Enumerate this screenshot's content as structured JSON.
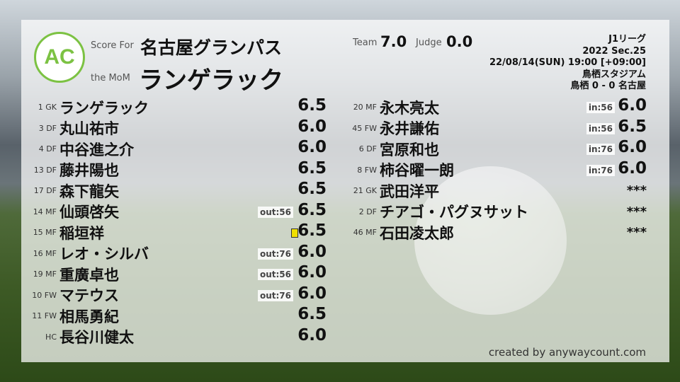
{
  "header": {
    "logo_text": "AC",
    "logo_ring": "ANYWAY COUNT",
    "score_for_label": "Score For",
    "team": "名古屋グランパス",
    "mom_label": "the MoM",
    "mom": "ランゲラック",
    "team_label": "Team",
    "team_score": "7.0",
    "judge_label": "Judge",
    "judge_score": "0.0"
  },
  "match": {
    "league": "J1リーグ",
    "section": "2022 Sec.25",
    "datetime": "22/08/14(SUN) 19:00 [+09:00]",
    "stadium": "鳥栖スタジアム",
    "result": "鳥栖 0 - 0 名古屋"
  },
  "left": [
    {
      "num": "1",
      "pos": "GK",
      "name": "ランゲラック",
      "score": "6.5",
      "badge": ""
    },
    {
      "num": "3",
      "pos": "DF",
      "name": "丸山祐市",
      "score": "6.0",
      "badge": ""
    },
    {
      "num": "4",
      "pos": "DF",
      "name": "中谷進之介",
      "score": "6.0",
      "badge": ""
    },
    {
      "num": "13",
      "pos": "DF",
      "name": "藤井陽也",
      "score": "6.5",
      "badge": ""
    },
    {
      "num": "17",
      "pos": "DF",
      "name": "森下龍矢",
      "score": "6.5",
      "badge": ""
    },
    {
      "num": "14",
      "pos": "MF",
      "name": "仙頭啓矢",
      "score": "6.5",
      "badge": "out:56"
    },
    {
      "num": "15",
      "pos": "MF",
      "name": "稲垣祥",
      "score": "6.5",
      "badge": "",
      "card": "yellow"
    },
    {
      "num": "16",
      "pos": "MF",
      "name": "レオ・シルバ",
      "score": "6.0",
      "badge": "out:76"
    },
    {
      "num": "19",
      "pos": "MF",
      "name": "重廣卓也",
      "score": "6.0",
      "badge": "out:56"
    },
    {
      "num": "10",
      "pos": "FW",
      "name": "マテウス",
      "score": "6.0",
      "badge": "out:76"
    },
    {
      "num": "11",
      "pos": "FW",
      "name": "相馬勇紀",
      "score": "6.5",
      "badge": ""
    },
    {
      "num": "",
      "pos": "HC",
      "name": "長谷川健太",
      "score": "6.0",
      "badge": ""
    }
  ],
  "right": [
    {
      "num": "20",
      "pos": "MF",
      "name": "永木亮太",
      "score": "6.0",
      "badge": "in:56"
    },
    {
      "num": "45",
      "pos": "FW",
      "name": "永井謙佑",
      "score": "6.5",
      "badge": "in:56"
    },
    {
      "num": "6",
      "pos": "DF",
      "name": "宮原和也",
      "score": "6.0",
      "badge": "in:76"
    },
    {
      "num": "8",
      "pos": "FW",
      "name": "柿谷曜一朗",
      "score": "6.0",
      "badge": "in:76"
    },
    {
      "num": "21",
      "pos": "GK",
      "name": "武田洋平",
      "score": "***",
      "badge": ""
    },
    {
      "num": "2",
      "pos": "DF",
      "name": "チアゴ・パグヌサット",
      "score": "***",
      "badge": ""
    },
    {
      "num": "46",
      "pos": "MF",
      "name": "石田凌太郎",
      "score": "***",
      "badge": ""
    }
  ],
  "footer": "created by anywaycount.com",
  "colors": {
    "logo_green": "#7cc243",
    "card_yellow": "#f0e000"
  }
}
